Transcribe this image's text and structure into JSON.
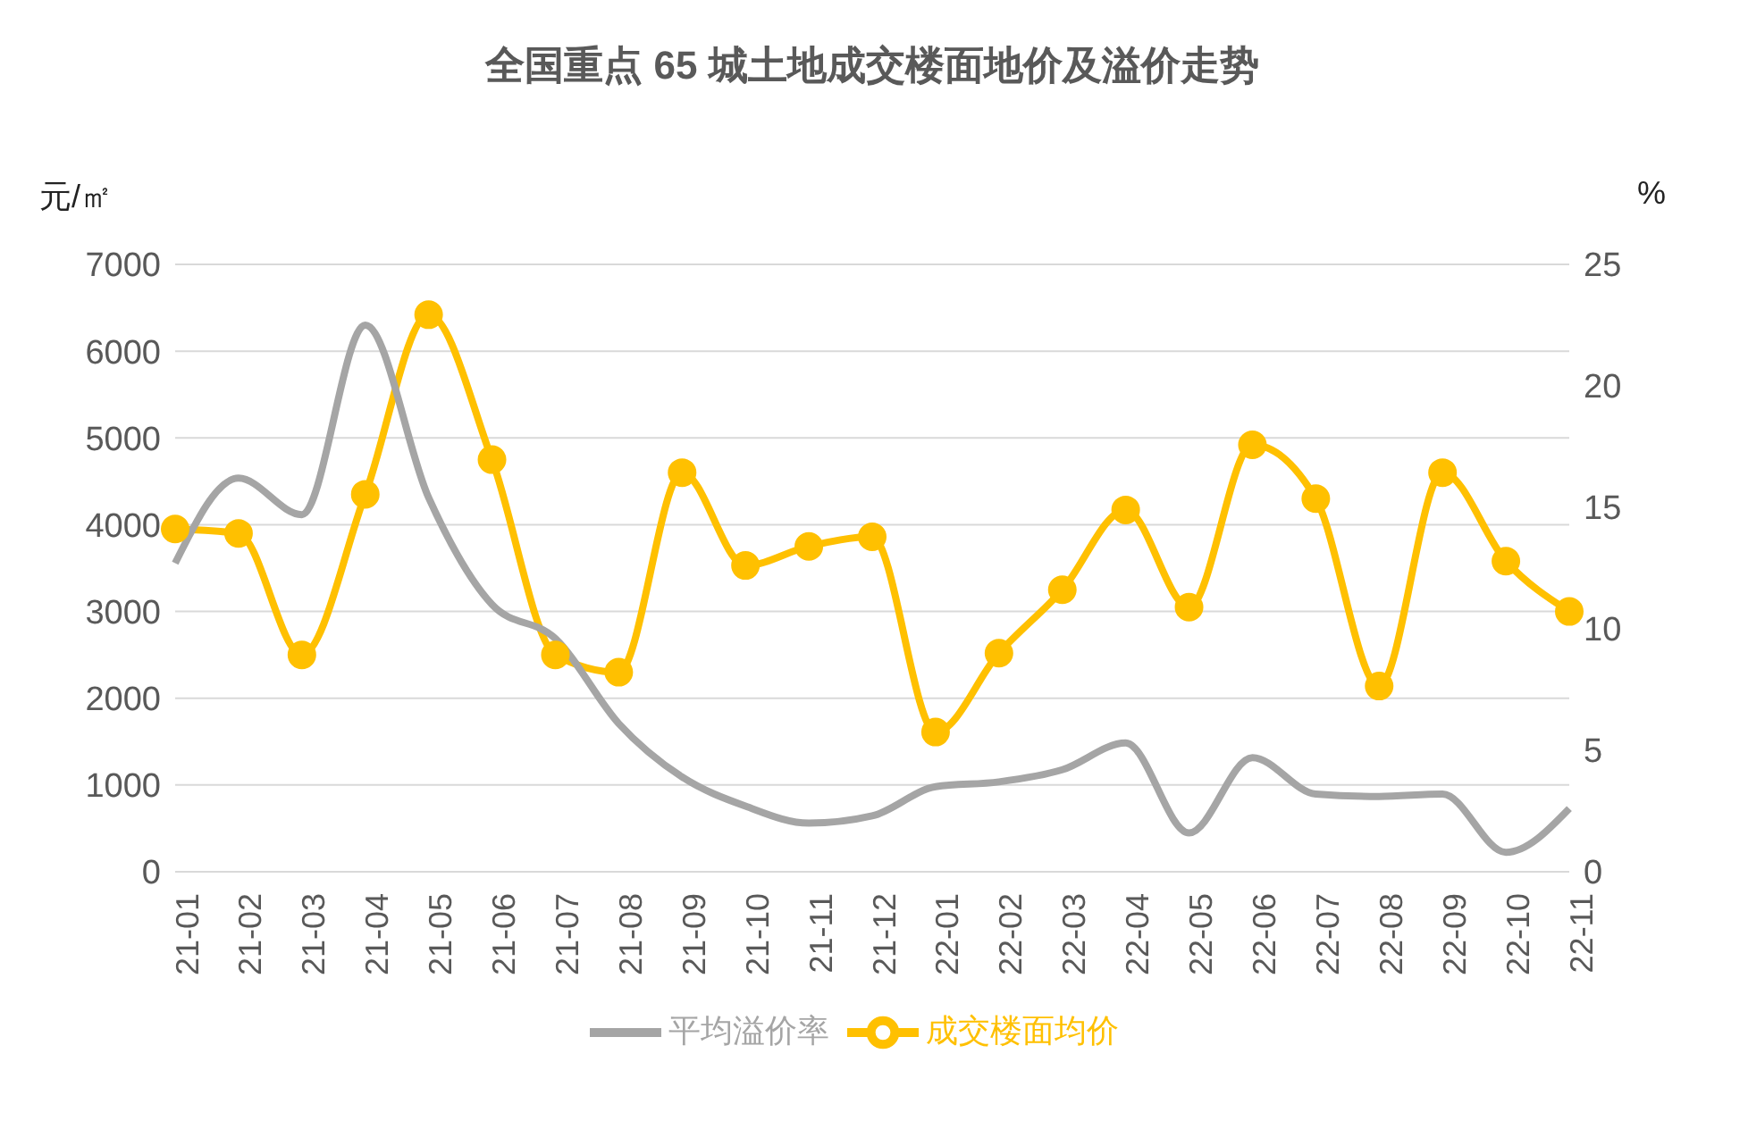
{
  "chart_data": {
    "type": "line",
    "title": "全国重点 65 城土地成交楼面地价及溢价走势",
    "ylabel": "元/㎡",
    "y2label": "%",
    "categories": [
      "21-01",
      "21-02",
      "21-03",
      "21-04",
      "21-05",
      "21-06",
      "21-07",
      "21-08",
      "21-09",
      "21-10",
      "21-11",
      "21-12",
      "22-01",
      "22-02",
      "22-03",
      "22-04",
      "22-05",
      "22-06",
      "22-07",
      "22-08",
      "22-09",
      "22-10",
      "22-11"
    ],
    "series": [
      {
        "name": "成交楼面均价",
        "color": "#ffc000",
        "marker": "circle",
        "values": [
          3950,
          3900,
          2500,
          4350,
          6420,
          4750,
          2500,
          2300,
          4600,
          3530,
          3750,
          3860,
          1610,
          2520,
          3250,
          4170,
          3050,
          4920,
          4300,
          2140,
          4600,
          3580,
          3000
        ]
      },
      {
        "name": "平均溢价率",
        "color": "#a5a5a5",
        "marker": "none",
        "axis": "y2",
        "values": [
          12.7,
          16.2,
          14.7,
          22.5,
          15.4,
          11.0,
          9.6,
          6.1,
          3.9,
          2.7,
          2.0,
          2.3,
          3.5,
          3.7,
          4.2,
          5.3,
          1.6,
          4.7,
          3.2,
          3.1,
          3.2,
          0.8,
          2.6
        ]
      }
    ],
    "ylim": [
      0,
      7000
    ],
    "yticks": [
      0,
      1000,
      2000,
      3000,
      4000,
      5000,
      6000,
      7000
    ],
    "y2lim": [
      0,
      25
    ],
    "y2ticks": [
      0,
      5,
      10,
      15,
      20,
      25
    ],
    "grid": "y",
    "legend": "bottom",
    "line_style": "solid"
  }
}
